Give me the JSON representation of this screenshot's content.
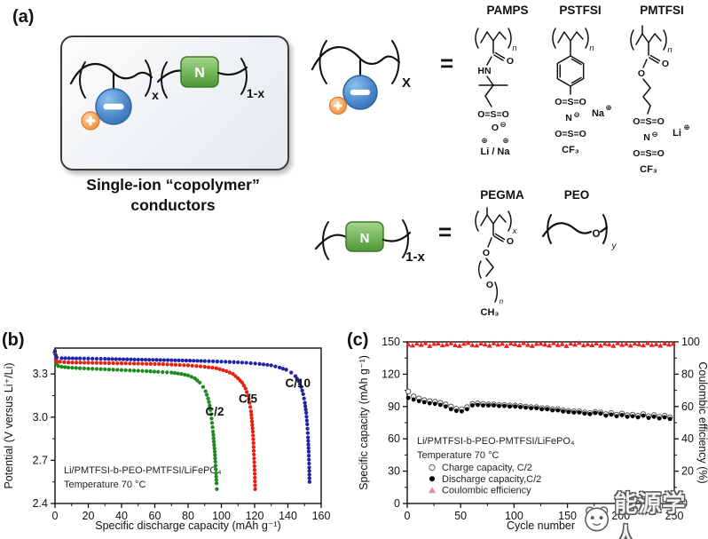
{
  "panel_a": {
    "label": "(a)",
    "caption_line1": "Single-ion “copolymer”",
    "caption_line2": "conductors",
    "equals_1": "=",
    "equals_2": "=",
    "schematic": {
      "anion_symbol": "−",
      "cation_symbol": "+",
      "neutral_letter": "N",
      "x_subscript": "x",
      "one_minus_x_subscript": "1-x"
    },
    "monomer_anion": {
      "x_subscript": "X"
    },
    "monomer_neutral": {
      "letter": "N",
      "subscript": "1-x"
    },
    "molecules": {
      "pamps": {
        "title": "PAMPS",
        "n_subscript": "n",
        "carbonyl_o": "O",
        "amide_nh": "HN",
        "sulfonyl": "O=S=O",
        "anion_o": "O",
        "anion_charge": "⊖",
        "plus_1": "⊕",
        "plus_2": "⊕",
        "cations": "Li / Na"
      },
      "pstfsi": {
        "title": "PSTFSI",
        "n_subscript": "n",
        "sulfonyl_top": "O=S=O",
        "imide_n": "N",
        "imide_charge": "⊖",
        "cation": "Na",
        "cation_charge": "⊕",
        "sulfonyl_bottom": "O=S=O",
        "cf3": "CF₃"
      },
      "pmtfsi": {
        "title": "PMTFSI",
        "n_subscript": "n",
        "carbonyl_o": "O",
        "ester_o": "O",
        "sulfonyl_top": "O=S=O",
        "imide_n": "N",
        "imide_charge": "⊖",
        "cation": "Li",
        "cation_charge": "⊕",
        "sulfonyl_bottom": "O=S=O",
        "cf3": "CF₃"
      },
      "pegma": {
        "title": "PEGMA",
        "x_subscript": "x",
        "carbonyl_o": "O",
        "ester_o": "O",
        "ether_o": "O",
        "n_subscript": "n",
        "terminal_ch3": "CH₃"
      },
      "peo": {
        "title": "PEO",
        "ether_o": "O",
        "y_subscript": "y"
      }
    }
  },
  "panel_b": {
    "label": "(b)"
  },
  "panel_c": {
    "label": "(c)"
  },
  "watermark": {
    "text": "能源学人"
  },
  "chart_data": [
    {
      "type": "scatter",
      "title": "",
      "xlabel": "Specific discharge capacity (mAh g⁻¹)",
      "ylabel": "Potential (V versus Li⁺/Li)",
      "xlim": [
        0,
        160
      ],
      "ylim": [
        2.4,
        3.48
      ],
      "xticks": [
        0,
        20,
        40,
        60,
        80,
        100,
        120,
        140,
        160
      ],
      "xtick_labels": [
        "0",
        "20",
        "40",
        "60",
        "80",
        "100",
        "120",
        "140",
        "160"
      ],
      "xminor": [
        10,
        30,
        50,
        70,
        90,
        110,
        130,
        150
      ],
      "yticks": [
        2.4,
        2.7,
        3.0,
        3.3
      ],
      "ytick_labels": [
        "2.4",
        "2.7",
        "3.0",
        "3.3"
      ],
      "yminor": [
        2.55,
        2.85,
        3.15,
        3.45
      ],
      "grid": false,
      "annotations": [
        "Li/PMTFSI-b-PEO-PMTFSI/LiFePO₄",
        "Temperature 70 °C"
      ],
      "series": [
        {
          "name": "C/2",
          "color": "#1e8a1e",
          "label_pos": [
            96,
            3.01
          ],
          "points": [
            [
              0,
              3.44
            ],
            [
              0.5,
              3.4
            ],
            [
              1,
              3.37
            ],
            [
              2,
              3.355
            ],
            [
              4,
              3.35
            ],
            [
              8,
              3.345
            ],
            [
              15,
              3.34
            ],
            [
              25,
              3.335
            ],
            [
              35,
              3.33
            ],
            [
              45,
              3.325
            ],
            [
              55,
              3.32
            ],
            [
              62,
              3.315
            ],
            [
              70,
              3.31
            ],
            [
              76,
              3.3
            ],
            [
              80,
              3.29
            ],
            [
              84,
              3.27
            ],
            [
              87,
              3.24
            ],
            [
              89,
              3.21
            ],
            [
              90.5,
              3.18
            ],
            [
              92,
              3.13
            ],
            [
              93,
              3.08
            ],
            [
              93.8,
              3.02
            ],
            [
              94.4,
              2.96
            ],
            [
              95,
              2.9
            ],
            [
              95.5,
              2.83
            ],
            [
              96,
              2.76
            ],
            [
              96.4,
              2.69
            ],
            [
              96.8,
              2.61
            ],
            [
              97.1,
              2.54
            ],
            [
              97.3,
              2.5
            ]
          ]
        },
        {
          "name": "C/5",
          "color": "#e82010",
          "label_pos": [
            116,
            3.1
          ],
          "points": [
            [
              0,
              3.45
            ],
            [
              0.5,
              3.41
            ],
            [
              1,
              3.39
            ],
            [
              3,
              3.385
            ],
            [
              8,
              3.38
            ],
            [
              20,
              3.378
            ],
            [
              35,
              3.375
            ],
            [
              50,
              3.372
            ],
            [
              65,
              3.368
            ],
            [
              80,
              3.36
            ],
            [
              90,
              3.35
            ],
            [
              97,
              3.34
            ],
            [
              103,
              3.32
            ],
            [
              107,
              3.3
            ],
            [
              110,
              3.27
            ],
            [
              112.5,
              3.24
            ],
            [
              114.5,
              3.2
            ],
            [
              116,
              3.15
            ],
            [
              117,
              3.1
            ],
            [
              117.8,
              3.04
            ],
            [
              118.4,
              2.97
            ],
            [
              118.9,
              2.9
            ],
            [
              119.3,
              2.82
            ],
            [
              119.6,
              2.74
            ],
            [
              119.9,
              2.66
            ],
            [
              120.1,
              2.58
            ],
            [
              120.3,
              2.5
            ]
          ]
        },
        {
          "name": "C/10",
          "color": "#2025a8",
          "label_pos": [
            146,
            3.21
          ],
          "points": [
            [
              0,
              3.46
            ],
            [
              0.5,
              3.43
            ],
            [
              1,
              3.415
            ],
            [
              4,
              3.41
            ],
            [
              15,
              3.408
            ],
            [
              30,
              3.405
            ],
            [
              50,
              3.4
            ],
            [
              70,
              3.396
            ],
            [
              90,
              3.39
            ],
            [
              105,
              3.384
            ],
            [
              115,
              3.378
            ],
            [
              123,
              3.37
            ],
            [
              130,
              3.36
            ],
            [
              135,
              3.345
            ],
            [
              139,
              3.33
            ],
            [
              142,
              3.31
            ],
            [
              144.5,
              3.285
            ],
            [
              146.5,
              3.25
            ],
            [
              148,
              3.21
            ],
            [
              149.2,
              3.16
            ],
            [
              150.2,
              3.1
            ],
            [
              151,
              3.03
            ],
            [
              151.6,
              2.95
            ],
            [
              152.1,
              2.86
            ],
            [
              152.5,
              2.76
            ],
            [
              152.8,
              2.65
            ],
            [
              153,
              2.55
            ]
          ]
        }
      ]
    },
    {
      "type": "scatter-dual",
      "title": "",
      "xlabel": "Cycle number",
      "ylabel_left": "Specific capacity (mAh g⁻¹)",
      "ylabel_right": "Coulombic efficiency (%)",
      "xlim": [
        0,
        250
      ],
      "ylim_left": [
        0,
        150
      ],
      "ylim_right": [
        0,
        100
      ],
      "xticks": [
        0,
        50,
        100,
        150,
        200,
        250
      ],
      "xtick_labels": [
        "0",
        "50",
        "100",
        "150",
        "200",
        "250"
      ],
      "xminor": [
        25,
        75,
        125,
        175,
        225
      ],
      "yticks_left": [
        0,
        30,
        60,
        90,
        120,
        150
      ],
      "ytick_labels_left": [
        "0",
        "30",
        "60",
        "90",
        "120",
        "150"
      ],
      "yminor_left": [
        15,
        45,
        75,
        105,
        135
      ],
      "yticks_right": [
        0,
        20,
        40,
        60,
        80,
        100
      ],
      "ytick_labels_right": [
        "0",
        "20",
        "40",
        "60",
        "80",
        "100"
      ],
      "yminor_right": [
        10,
        30,
        50,
        70,
        90
      ],
      "grid": false,
      "annotations": [
        "Li/PMTFSI-b-PEO-PMTFSI/LiFePO₄",
        "Temperature 70 °C"
      ],
      "legend": [
        {
          "label": "Charge capacity, C/2",
          "marker": "open-circle",
          "color": "#666666"
        },
        {
          "label": "Discharge capacity,C/2",
          "marker": "filled-circle",
          "color": "#000000"
        },
        {
          "label": "Coulombic efficiency",
          "marker": "triangle-up",
          "color": "#e89090"
        }
      ],
      "series": [
        {
          "name": "Charge capacity, C/2",
          "marker": "open-circle",
          "color": "#555555",
          "axis": "left",
          "x_start": 1,
          "x_step": 5,
          "values": [
            104,
            99.5,
            97.5,
            96,
            95,
            94.5,
            93.5,
            92,
            90,
            88,
            87.5,
            89.5,
            92.5,
            93,
            92.5,
            92,
            92,
            91.5,
            91.5,
            91,
            91,
            90.5,
            90,
            89.5,
            89.5,
            88.5,
            88.5,
            87.5,
            87.5,
            86.5,
            86,
            85.5,
            85.5,
            84.5,
            84,
            85,
            84.5,
            83,
            84,
            82.5,
            83.5,
            82,
            82.5,
            81.5,
            83,
            81,
            82,
            80.5,
            81.5,
            80,
            80.5
          ]
        },
        {
          "name": "Discharge capacity,C/2",
          "marker": "filled-circle",
          "color": "#000000",
          "axis": "left",
          "x_start": 1,
          "x_step": 5,
          "values": [
            98,
            96.5,
            95,
            94,
            93,
            92.5,
            91.5,
            90,
            87.5,
            86,
            85.5,
            87.5,
            91,
            91.5,
            91,
            91,
            91,
            90.5,
            90.5,
            90,
            90,
            89.5,
            89,
            88.5,
            88.5,
            87.5,
            87.5,
            86.5,
            86.5,
            85.5,
            85,
            84.5,
            84.5,
            83.5,
            83,
            84,
            83.5,
            81.5,
            82.5,
            81,
            82,
            80.5,
            81,
            80,
            81.5,
            79.5,
            80.5,
            79,
            80,
            78.5,
            79
          ]
        },
        {
          "name": "Coulombic efficiency",
          "marker": "triangle-up",
          "color": "#ee1f1f",
          "axis": "right",
          "x_start": 1,
          "x_step": 4,
          "values": [
            98.5,
            97.8,
            99.0,
            98.2,
            99.3,
            97.5,
            98.8,
            99.1,
            97.9,
            98.4,
            99.2,
            98.0,
            97.6,
            98.9,
            99.4,
            98.1,
            97.8,
            99.0,
            98.5,
            97.7,
            99.2,
            98.3,
            98.9,
            97.5,
            99.1,
            98.6,
            97.9,
            99.3,
            98.2,
            97.6,
            98.8,
            99.0,
            98.4,
            97.8,
            99.2,
            98.1,
            98.7,
            97.5,
            99.0,
            98.3,
            99.4,
            97.9,
            98.6,
            98.0,
            99.1,
            97.7,
            98.9,
            98.4,
            97.6,
            99.2,
            98.2,
            98.8,
            97.8,
            99.0,
            98.5,
            97.9,
            99.3,
            98.1,
            98.6,
            97.7,
            99.1,
            98.3,
            98.9
          ]
        }
      ]
    }
  ]
}
